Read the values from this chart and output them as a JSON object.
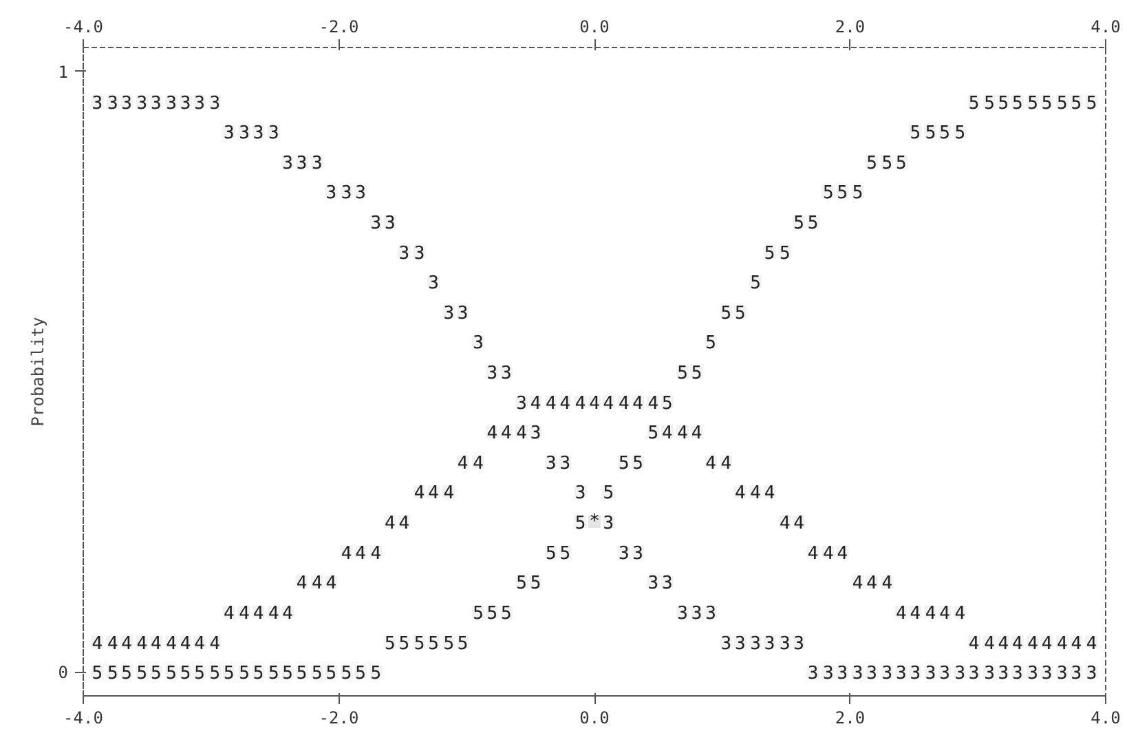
{
  "chart_data": {
    "type": "scatter",
    "ylabel": "Probability",
    "xlim": [
      -4,
      4
    ],
    "ylim": [
      -0.04,
      1.04
    ],
    "xticks": [
      {
        "value": -4,
        "label": "-4.0"
      },
      {
        "value": -2,
        "label": "-2.0"
      },
      {
        "value": 0,
        "label": "0.0"
      },
      {
        "value": 2,
        "label": "2.0"
      },
      {
        "value": 4,
        "label": "4.0"
      }
    ],
    "x2lim": [
      -4,
      4
    ],
    "x2ticks": [
      {
        "value": -4,
        "label": "-4.0"
      },
      {
        "value": -2,
        "label": "-2.0"
      },
      {
        "value": 0,
        "label": "0.0"
      },
      {
        "value": 2,
        "label": "2.0"
      },
      {
        "value": 4,
        "label": "4.0"
      }
    ],
    "yticks": [
      0,
      1
    ],
    "grid": false,
    "legend": false,
    "annotations": [
      "*"
    ],
    "series": [
      {
        "name": "3",
        "color": "#222222",
        "x": [
          -3.89,
          -3.77,
          -3.66,
          -3.54,
          -3.43,
          -3.31,
          -3.2,
          -3.09,
          -2.97,
          -2.86,
          -2.74,
          -2.63,
          -2.51,
          -2.4,
          -2.29,
          -2.17,
          -2.06,
          -1.94,
          -1.83,
          -1.71,
          -1.6,
          -1.49,
          -1.37,
          -1.26,
          -1.14,
          -1.03,
          -0.91,
          -0.8,
          -0.69,
          -0.57,
          -0.46,
          -0.34,
          -0.23,
          -0.11,
          0,
          0.11,
          0.23,
          0.34,
          0.46,
          0.57,
          0.69,
          0.8,
          0.91,
          1.03,
          1.14,
          1.26,
          1.37,
          1.49,
          1.6,
          1.71,
          1.83,
          1.94,
          2.06,
          2.17,
          2.29,
          2.4,
          2.51,
          2.63,
          2.74,
          2.86,
          2.97,
          3.09,
          3.2,
          3.31,
          3.43,
          3.54,
          3.66,
          3.77,
          3.89
        ],
        "values": [
          0.95,
          0.95,
          0.95,
          0.95,
          0.95,
          0.95,
          0.95,
          0.95,
          0.95,
          0.9,
          0.9,
          0.9,
          0.9,
          0.85,
          0.85,
          0.85,
          0.8,
          0.8,
          0.8,
          0.75,
          0.75,
          0.7,
          0.7,
          0.65,
          0.6,
          0.6,
          0.55,
          0.5,
          0.5,
          0.45,
          0.4,
          0.35,
          0.35,
          0.3,
          0.25,
          0.25,
          0.2,
          0.2,
          0.15,
          0.15,
          0.1,
          0.1,
          0.1,
          0.05,
          0.05,
          0.05,
          0.05,
          0.05,
          0.05,
          0,
          0,
          0,
          0,
          0,
          0,
          0,
          0,
          0,
          0,
          0,
          0,
          0,
          0,
          0,
          0,
          0,
          0,
          0,
          0
        ]
      },
      {
        "name": "4",
        "color": "#222222",
        "x": [
          -3.89,
          -3.77,
          -3.66,
          -3.54,
          -3.43,
          -3.31,
          -3.2,
          -3.09,
          -2.97,
          -2.86,
          -2.74,
          -2.63,
          -2.51,
          -2.4,
          -2.29,
          -2.17,
          -2.06,
          -1.94,
          -1.83,
          -1.71,
          -1.6,
          -1.49,
          -1.37,
          -1.26,
          -1.14,
          -1.03,
          -0.91,
          -0.8,
          -0.69,
          -0.57,
          -0.46,
          -0.34,
          -0.23,
          -0.11,
          0,
          0.11,
          0.23,
          0.34,
          0.46,
          0.57,
          0.69,
          0.8,
          0.91,
          1.03,
          1.14,
          1.26,
          1.37,
          1.49,
          1.6,
          1.71,
          1.83,
          1.94,
          2.06,
          2.17,
          2.29,
          2.4,
          2.51,
          2.63,
          2.74,
          2.86,
          2.97,
          3.09,
          3.2,
          3.31,
          3.43,
          3.54,
          3.66,
          3.77,
          3.89
        ],
        "values": [
          0.05,
          0.05,
          0.05,
          0.05,
          0.05,
          0.05,
          0.05,
          0.05,
          0.05,
          0.1,
          0.1,
          0.1,
          0.1,
          0.1,
          0.15,
          0.15,
          0.15,
          0.2,
          0.2,
          0.2,
          0.25,
          0.25,
          0.3,
          0.3,
          0.3,
          0.35,
          0.35,
          0.4,
          0.4,
          0.4,
          0.45,
          0.45,
          0.45,
          0.45,
          0.45,
          0.45,
          0.45,
          0.45,
          0.45,
          0.4,
          0.4,
          0.4,
          0.35,
          0.35,
          0.3,
          0.3,
          0.3,
          0.25,
          0.25,
          0.2,
          0.2,
          0.2,
          0.15,
          0.15,
          0.15,
          0.1,
          0.1,
          0.1,
          0.1,
          0.1,
          0.05,
          0.05,
          0.05,
          0.05,
          0.05,
          0.05,
          0.05,
          0.05,
          0.05
        ]
      },
      {
        "name": "5",
        "color": "#222222",
        "x": [
          -3.89,
          -3.77,
          -3.66,
          -3.54,
          -3.43,
          -3.31,
          -3.2,
          -3.09,
          -2.97,
          -2.86,
          -2.74,
          -2.63,
          -2.51,
          -2.4,
          -2.29,
          -2.17,
          -2.06,
          -1.94,
          -1.83,
          -1.71,
          -1.6,
          -1.49,
          -1.37,
          -1.26,
          -1.14,
          -1.03,
          -0.91,
          -0.8,
          -0.69,
          -0.57,
          -0.46,
          -0.34,
          -0.23,
          -0.11,
          0,
          0.11,
          0.23,
          0.34,
          0.46,
          0.57,
          0.69,
          0.8,
          0.91,
          1.03,
          1.14,
          1.26,
          1.37,
          1.49,
          1.6,
          1.71,
          1.83,
          1.94,
          2.06,
          2.17,
          2.29,
          2.4,
          2.51,
          2.63,
          2.74,
          2.86,
          2.97,
          3.09,
          3.2,
          3.31,
          3.43,
          3.54,
          3.66,
          3.77,
          3.89
        ],
        "values": [
          0,
          0,
          0,
          0,
          0,
          0,
          0,
          0,
          0,
          0,
          0,
          0,
          0,
          0,
          0,
          0,
          0,
          0,
          0,
          0,
          0.05,
          0.05,
          0.05,
          0.05,
          0.05,
          0.05,
          0.1,
          0.1,
          0.1,
          0.15,
          0.15,
          0.2,
          0.2,
          0.25,
          0.25,
          0.3,
          0.35,
          0.35,
          0.4,
          0.45,
          0.5,
          0.5,
          0.55,
          0.6,
          0.6,
          0.65,
          0.7,
          0.7,
          0.75,
          0.75,
          0.8,
          0.8,
          0.8,
          0.85,
          0.85,
          0.85,
          0.9,
          0.9,
          0.9,
          0.9,
          0.95,
          0.95,
          0.95,
          0.95,
          0.95,
          0.95,
          0.95,
          0.95,
          0.95
        ]
      }
    ]
  }
}
